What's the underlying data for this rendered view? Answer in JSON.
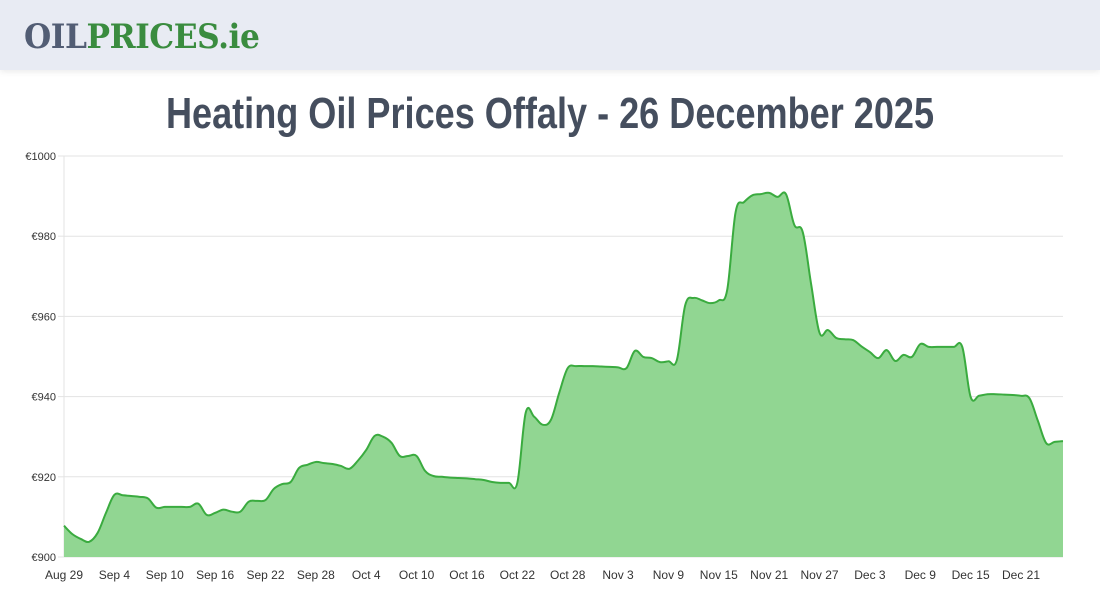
{
  "header": {
    "logo_part1": "OIL",
    "logo_part2": "PRICES.ie"
  },
  "page": {
    "title": "Heating Oil Prices Offaly - 26 December 2025"
  },
  "colors": {
    "line": "#3aab3f",
    "fill": "#91d692",
    "grid": "#e3e3e3",
    "title": "#454e5e",
    "logo_dark": "#525d74",
    "logo_green": "#3a8c3f"
  },
  "chart_data": {
    "type": "area",
    "title": "Heating Oil Prices Offaly - 26 December 2025",
    "xlabel": "",
    "ylabel": "",
    "ylim": [
      900,
      1000
    ],
    "y_ticks": [
      "€900",
      "€920",
      "€940",
      "€960",
      "€980",
      "€1000"
    ],
    "y_tick_values": [
      900,
      920,
      940,
      960,
      980,
      1000
    ],
    "x_ticks": [
      "Aug 29",
      "Sep 4",
      "Sep 10",
      "Sep 16",
      "Sep 22",
      "Sep 28",
      "Oct 4",
      "Oct 10",
      "Oct 16",
      "Oct 22",
      "Oct 28",
      "Nov 3",
      "Nov 9",
      "Nov 15",
      "Nov 21",
      "Nov 27",
      "Dec 3",
      "Dec 9",
      "Dec 15",
      "Dec 21"
    ],
    "x_tick_step_days": 6,
    "grid": true,
    "legend": "none",
    "x_start": "Aug 29",
    "x_end": "Dec 26",
    "points": [
      [
        0,
        907.8
      ],
      [
        1,
        905.7
      ],
      [
        2,
        904.5
      ],
      [
        3,
        903.8
      ],
      [
        4,
        906.0
      ],
      [
        5,
        911.0
      ],
      [
        6,
        915.5
      ],
      [
        7,
        915.4
      ],
      [
        8,
        915.2
      ],
      [
        9,
        915.0
      ],
      [
        10,
        914.6
      ],
      [
        11,
        912.3
      ],
      [
        12,
        912.5
      ],
      [
        13,
        912.5
      ],
      [
        14,
        912.5
      ],
      [
        15,
        912.5
      ],
      [
        16,
        913.3
      ],
      [
        17,
        910.5
      ],
      [
        18,
        911.0
      ],
      [
        19,
        911.8
      ],
      [
        20,
        911.3
      ],
      [
        21,
        911.3
      ],
      [
        22,
        913.8
      ],
      [
        23,
        914.0
      ],
      [
        24,
        914.2
      ],
      [
        25,
        917.0
      ],
      [
        26,
        918.2
      ],
      [
        27,
        918.7
      ],
      [
        28,
        922.2
      ],
      [
        29,
        923.0
      ],
      [
        30,
        923.7
      ],
      [
        31,
        923.4
      ],
      [
        32,
        923.2
      ],
      [
        33,
        922.7
      ],
      [
        34,
        922.0
      ],
      [
        35,
        924.0
      ],
      [
        36,
        926.7
      ],
      [
        37,
        930.2
      ],
      [
        38,
        930.0
      ],
      [
        39,
        928.5
      ],
      [
        40,
        925.2
      ],
      [
        41,
        925.2
      ],
      [
        42,
        925.2
      ],
      [
        43,
        921.5
      ],
      [
        44,
        920.2
      ],
      [
        45,
        920.0
      ],
      [
        46,
        919.8
      ],
      [
        47,
        919.7
      ],
      [
        48,
        919.6
      ],
      [
        49,
        919.4
      ],
      [
        50,
        919.2
      ],
      [
        51,
        918.7
      ],
      [
        52,
        918.5
      ],
      [
        53,
        918.5
      ],
      [
        54,
        918.5
      ],
      [
        55,
        936.0
      ],
      [
        56,
        935.0
      ],
      [
        57,
        933.0
      ],
      [
        58,
        934.2
      ],
      [
        59,
        941.0
      ],
      [
        60,
        947.1
      ],
      [
        61,
        947.6
      ],
      [
        62,
        947.6
      ],
      [
        63,
        947.6
      ],
      [
        64,
        947.5
      ],
      [
        65,
        947.4
      ],
      [
        66,
        947.3
      ],
      [
        67,
        947.1
      ],
      [
        68,
        951.4
      ],
      [
        69,
        949.9
      ],
      [
        70,
        949.6
      ],
      [
        71,
        948.6
      ],
      [
        72,
        948.8
      ],
      [
        73,
        949.1
      ],
      [
        74,
        962.8
      ],
      [
        75,
        964.6
      ],
      [
        76,
        964.0
      ],
      [
        77,
        963.3
      ],
      [
        78,
        964.0
      ],
      [
        79,
        966.6
      ],
      [
        80,
        986.0
      ],
      [
        81,
        988.5
      ],
      [
        82,
        990.2
      ],
      [
        83,
        990.5
      ],
      [
        84,
        990.8
      ],
      [
        85,
        989.8
      ],
      [
        86,
        990.5
      ],
      [
        87,
        982.8
      ],
      [
        88,
        981.0
      ],
      [
        89,
        968.0
      ],
      [
        90,
        955.9
      ],
      [
        91,
        956.6
      ],
      [
        92,
        954.6
      ],
      [
        93,
        954.3
      ],
      [
        94,
        954.1
      ],
      [
        95,
        952.5
      ],
      [
        96,
        951.1
      ],
      [
        97,
        949.6
      ],
      [
        98,
        951.6
      ],
      [
        99,
        948.9
      ],
      [
        100,
        950.4
      ],
      [
        101,
        949.9
      ],
      [
        102,
        953.1
      ],
      [
        103,
        952.4
      ],
      [
        104,
        952.4
      ],
      [
        105,
        952.4
      ],
      [
        106,
        952.4
      ],
      [
        107,
        952.4
      ],
      [
        108,
        939.9
      ],
      [
        109,
        940.2
      ],
      [
        110,
        940.6
      ],
      [
        111,
        940.6
      ],
      [
        112,
        940.5
      ],
      [
        113,
        940.4
      ],
      [
        114,
        940.2
      ],
      [
        115,
        939.6
      ],
      [
        116,
        934.0
      ],
      [
        117,
        928.4
      ],
      [
        118,
        928.7
      ],
      [
        119,
        928.9
      ]
    ]
  }
}
